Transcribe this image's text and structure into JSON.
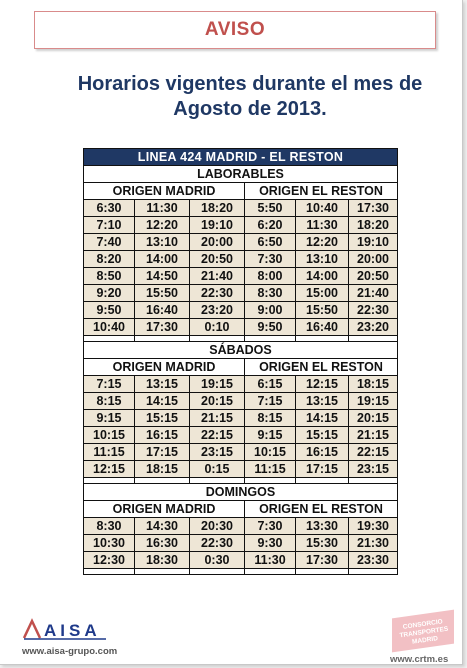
{
  "aviso": "AVISO",
  "headline": {
    "line1": "Horarios vigentes durante el mes de",
    "line2": "Agosto de 2013."
  },
  "schedule": {
    "title": "LINEA 424 MADRID - EL RESTON",
    "origin_left": "ORIGEN MADRID",
    "origin_right": "ORIGEN EL RESTON",
    "sections": [
      {
        "name": "LABORABLES",
        "rows": [
          [
            "6:30",
            "11:30",
            "18:20",
            "5:50",
            "10:40",
            "17:30"
          ],
          [
            "7:10",
            "12:20",
            "19:10",
            "6:20",
            "11:30",
            "18:20"
          ],
          [
            "7:40",
            "13:10",
            "20:00",
            "6:50",
            "12:20",
            "19:10"
          ],
          [
            "8:20",
            "14:00",
            "20:50",
            "7:30",
            "13:10",
            "20:00"
          ],
          [
            "8:50",
            "14:50",
            "21:40",
            "8:00",
            "14:00",
            "20:50"
          ],
          [
            "9:20",
            "15:50",
            "22:30",
            "8:30",
            "15:00",
            "21:40"
          ],
          [
            "9:50",
            "16:40",
            "23:20",
            "9:00",
            "15:50",
            "22:30"
          ],
          [
            "10:40",
            "17:30",
            "0:10",
            "9:50",
            "16:40",
            "23:20"
          ]
        ]
      },
      {
        "name": "SÁBADOS",
        "rows": [
          [
            "7:15",
            "13:15",
            "19:15",
            "6:15",
            "12:15",
            "18:15"
          ],
          [
            "8:15",
            "14:15",
            "20:15",
            "7:15",
            "13:15",
            "19:15"
          ],
          [
            "9:15",
            "15:15",
            "21:15",
            "8:15",
            "14:15",
            "20:15"
          ],
          [
            "10:15",
            "16:15",
            "22:15",
            "9:15",
            "15:15",
            "21:15"
          ],
          [
            "11:15",
            "17:15",
            "23:15",
            "10:15",
            "16:15",
            "22:15"
          ],
          [
            "12:15",
            "18:15",
            "0:15",
            "11:15",
            "17:15",
            "23:15"
          ]
        ]
      },
      {
        "name": "DOMINGOS",
        "rows": [
          [
            "8:30",
            "14:30",
            "20:30",
            "7:30",
            "13:30",
            "19:30"
          ],
          [
            "10:30",
            "16:30",
            "22:30",
            "9:30",
            "15:30",
            "21:30"
          ],
          [
            "12:30",
            "18:30",
            "0:30",
            "11:30",
            "17:30",
            "23:30"
          ]
        ]
      }
    ]
  },
  "footer": {
    "aisa_logo": "AISA",
    "aisa_url": "www.aisa-grupo.com",
    "crtm_logo_text": "CONSORCIO TRANSPORTES MADRID",
    "crtm_url": "www.crtm.es"
  },
  "colors": {
    "aviso": "#c0504d",
    "headline": "#1f3864",
    "title_bar": "#1f3864",
    "cell_fill": "#eee6d6",
    "aisa_blue": "#1f3a8a",
    "crtm_pink": "#f2c0c4"
  }
}
